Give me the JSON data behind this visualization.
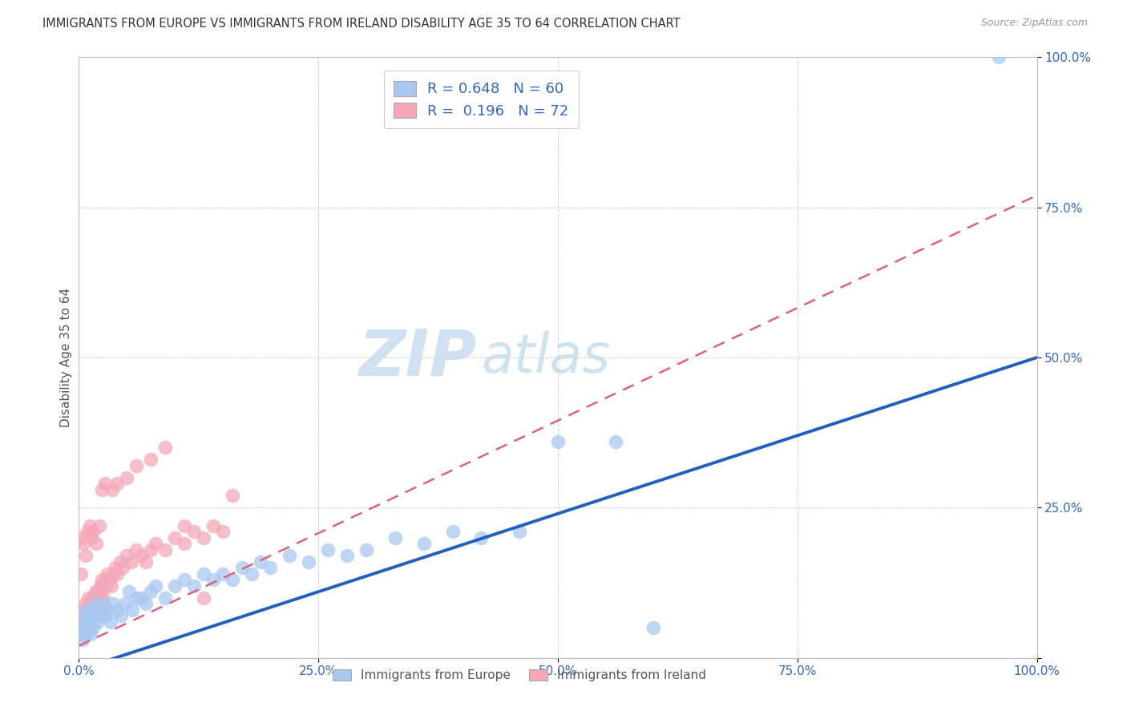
{
  "title": "IMMIGRANTS FROM EUROPE VS IMMIGRANTS FROM IRELAND DISABILITY AGE 35 TO 64 CORRELATION CHART",
  "source": "Source: ZipAtlas.com",
  "ylabel": "Disability Age 35 to 64",
  "xlim": [
    0,
    1.0
  ],
  "ylim": [
    0,
    1.0
  ],
  "xtick_labels": [
    "0.0%",
    "25.0%",
    "50.0%",
    "75.0%",
    "100.0%"
  ],
  "xtick_positions": [
    0,
    0.25,
    0.5,
    0.75,
    1.0
  ],
  "ytick_labels": [
    "",
    "25.0%",
    "50.0%",
    "75.0%",
    "100.0%"
  ],
  "ytick_positions": [
    0,
    0.25,
    0.5,
    0.75,
    1.0
  ],
  "europe_color": "#a8c8f0",
  "ireland_color": "#f4a8b8",
  "europe_line_color": "#2060c0",
  "ireland_line_color": "#e06080",
  "europe_line_slope": 0.52,
  "europe_line_intercept": -0.02,
  "ireland_line_slope": 0.75,
  "ireland_line_intercept": 0.02,
  "R_europe": 0.648,
  "N_europe": 60,
  "R_ireland": 0.196,
  "N_ireland": 72,
  "watermark_zip": "ZIP",
  "watermark_atlas": "atlas",
  "legend_europe": "Immigrants from Europe",
  "legend_ireland": "Immigrants from Ireland",
  "europe_scatter_x": [
    0.002,
    0.003,
    0.004,
    0.005,
    0.006,
    0.007,
    0.008,
    0.009,
    0.01,
    0.011,
    0.012,
    0.013,
    0.014,
    0.015,
    0.016,
    0.018,
    0.02,
    0.022,
    0.024,
    0.026,
    0.028,
    0.03,
    0.033,
    0.036,
    0.04,
    0.044,
    0.048,
    0.052,
    0.056,
    0.06,
    0.065,
    0.07,
    0.075,
    0.08,
    0.09,
    0.1,
    0.11,
    0.12,
    0.13,
    0.14,
    0.15,
    0.16,
    0.17,
    0.18,
    0.19,
    0.2,
    0.22,
    0.24,
    0.26,
    0.28,
    0.3,
    0.33,
    0.36,
    0.39,
    0.42,
    0.46,
    0.5,
    0.56,
    0.6,
    0.96
  ],
  "europe_scatter_y": [
    0.04,
    0.06,
    0.03,
    0.07,
    0.05,
    0.04,
    0.06,
    0.08,
    0.05,
    0.07,
    0.04,
    0.06,
    0.08,
    0.05,
    0.07,
    0.09,
    0.06,
    0.08,
    0.07,
    0.09,
    0.07,
    0.08,
    0.06,
    0.09,
    0.08,
    0.07,
    0.09,
    0.11,
    0.08,
    0.1,
    0.1,
    0.09,
    0.11,
    0.12,
    0.1,
    0.12,
    0.13,
    0.12,
    0.14,
    0.13,
    0.14,
    0.13,
    0.15,
    0.14,
    0.16,
    0.15,
    0.17,
    0.16,
    0.18,
    0.17,
    0.18,
    0.2,
    0.19,
    0.21,
    0.2,
    0.21,
    0.36,
    0.36,
    0.05,
    1.0
  ],
  "ireland_scatter_x": [
    0.001,
    0.002,
    0.003,
    0.004,
    0.005,
    0.006,
    0.007,
    0.008,
    0.009,
    0.01,
    0.011,
    0.012,
    0.013,
    0.014,
    0.015,
    0.016,
    0.017,
    0.018,
    0.019,
    0.02,
    0.021,
    0.022,
    0.023,
    0.024,
    0.025,
    0.026,
    0.027,
    0.028,
    0.03,
    0.032,
    0.034,
    0.036,
    0.038,
    0.04,
    0.043,
    0.046,
    0.05,
    0.055,
    0.06,
    0.065,
    0.07,
    0.075,
    0.08,
    0.09,
    0.1,
    0.11,
    0.12,
    0.13,
    0.14,
    0.15,
    0.002,
    0.003,
    0.005,
    0.007,
    0.009,
    0.011,
    0.013,
    0.015,
    0.018,
    0.021,
    0.024,
    0.027,
    0.03,
    0.035,
    0.04,
    0.05,
    0.06,
    0.075,
    0.09,
    0.11,
    0.13,
    0.16
  ],
  "ireland_scatter_y": [
    0.05,
    0.07,
    0.06,
    0.08,
    0.06,
    0.07,
    0.09,
    0.07,
    0.08,
    0.1,
    0.08,
    0.09,
    0.07,
    0.1,
    0.09,
    0.08,
    0.11,
    0.1,
    0.09,
    0.11,
    0.1,
    0.12,
    0.11,
    0.13,
    0.12,
    0.1,
    0.13,
    0.12,
    0.14,
    0.13,
    0.12,
    0.14,
    0.15,
    0.14,
    0.16,
    0.15,
    0.17,
    0.16,
    0.18,
    0.17,
    0.16,
    0.18,
    0.19,
    0.18,
    0.2,
    0.19,
    0.21,
    0.2,
    0.22,
    0.21,
    0.14,
    0.2,
    0.19,
    0.17,
    0.21,
    0.22,
    0.2,
    0.21,
    0.19,
    0.22,
    0.28,
    0.29,
    0.08,
    0.28,
    0.29,
    0.3,
    0.32,
    0.33,
    0.35,
    0.22,
    0.1,
    0.27
  ]
}
